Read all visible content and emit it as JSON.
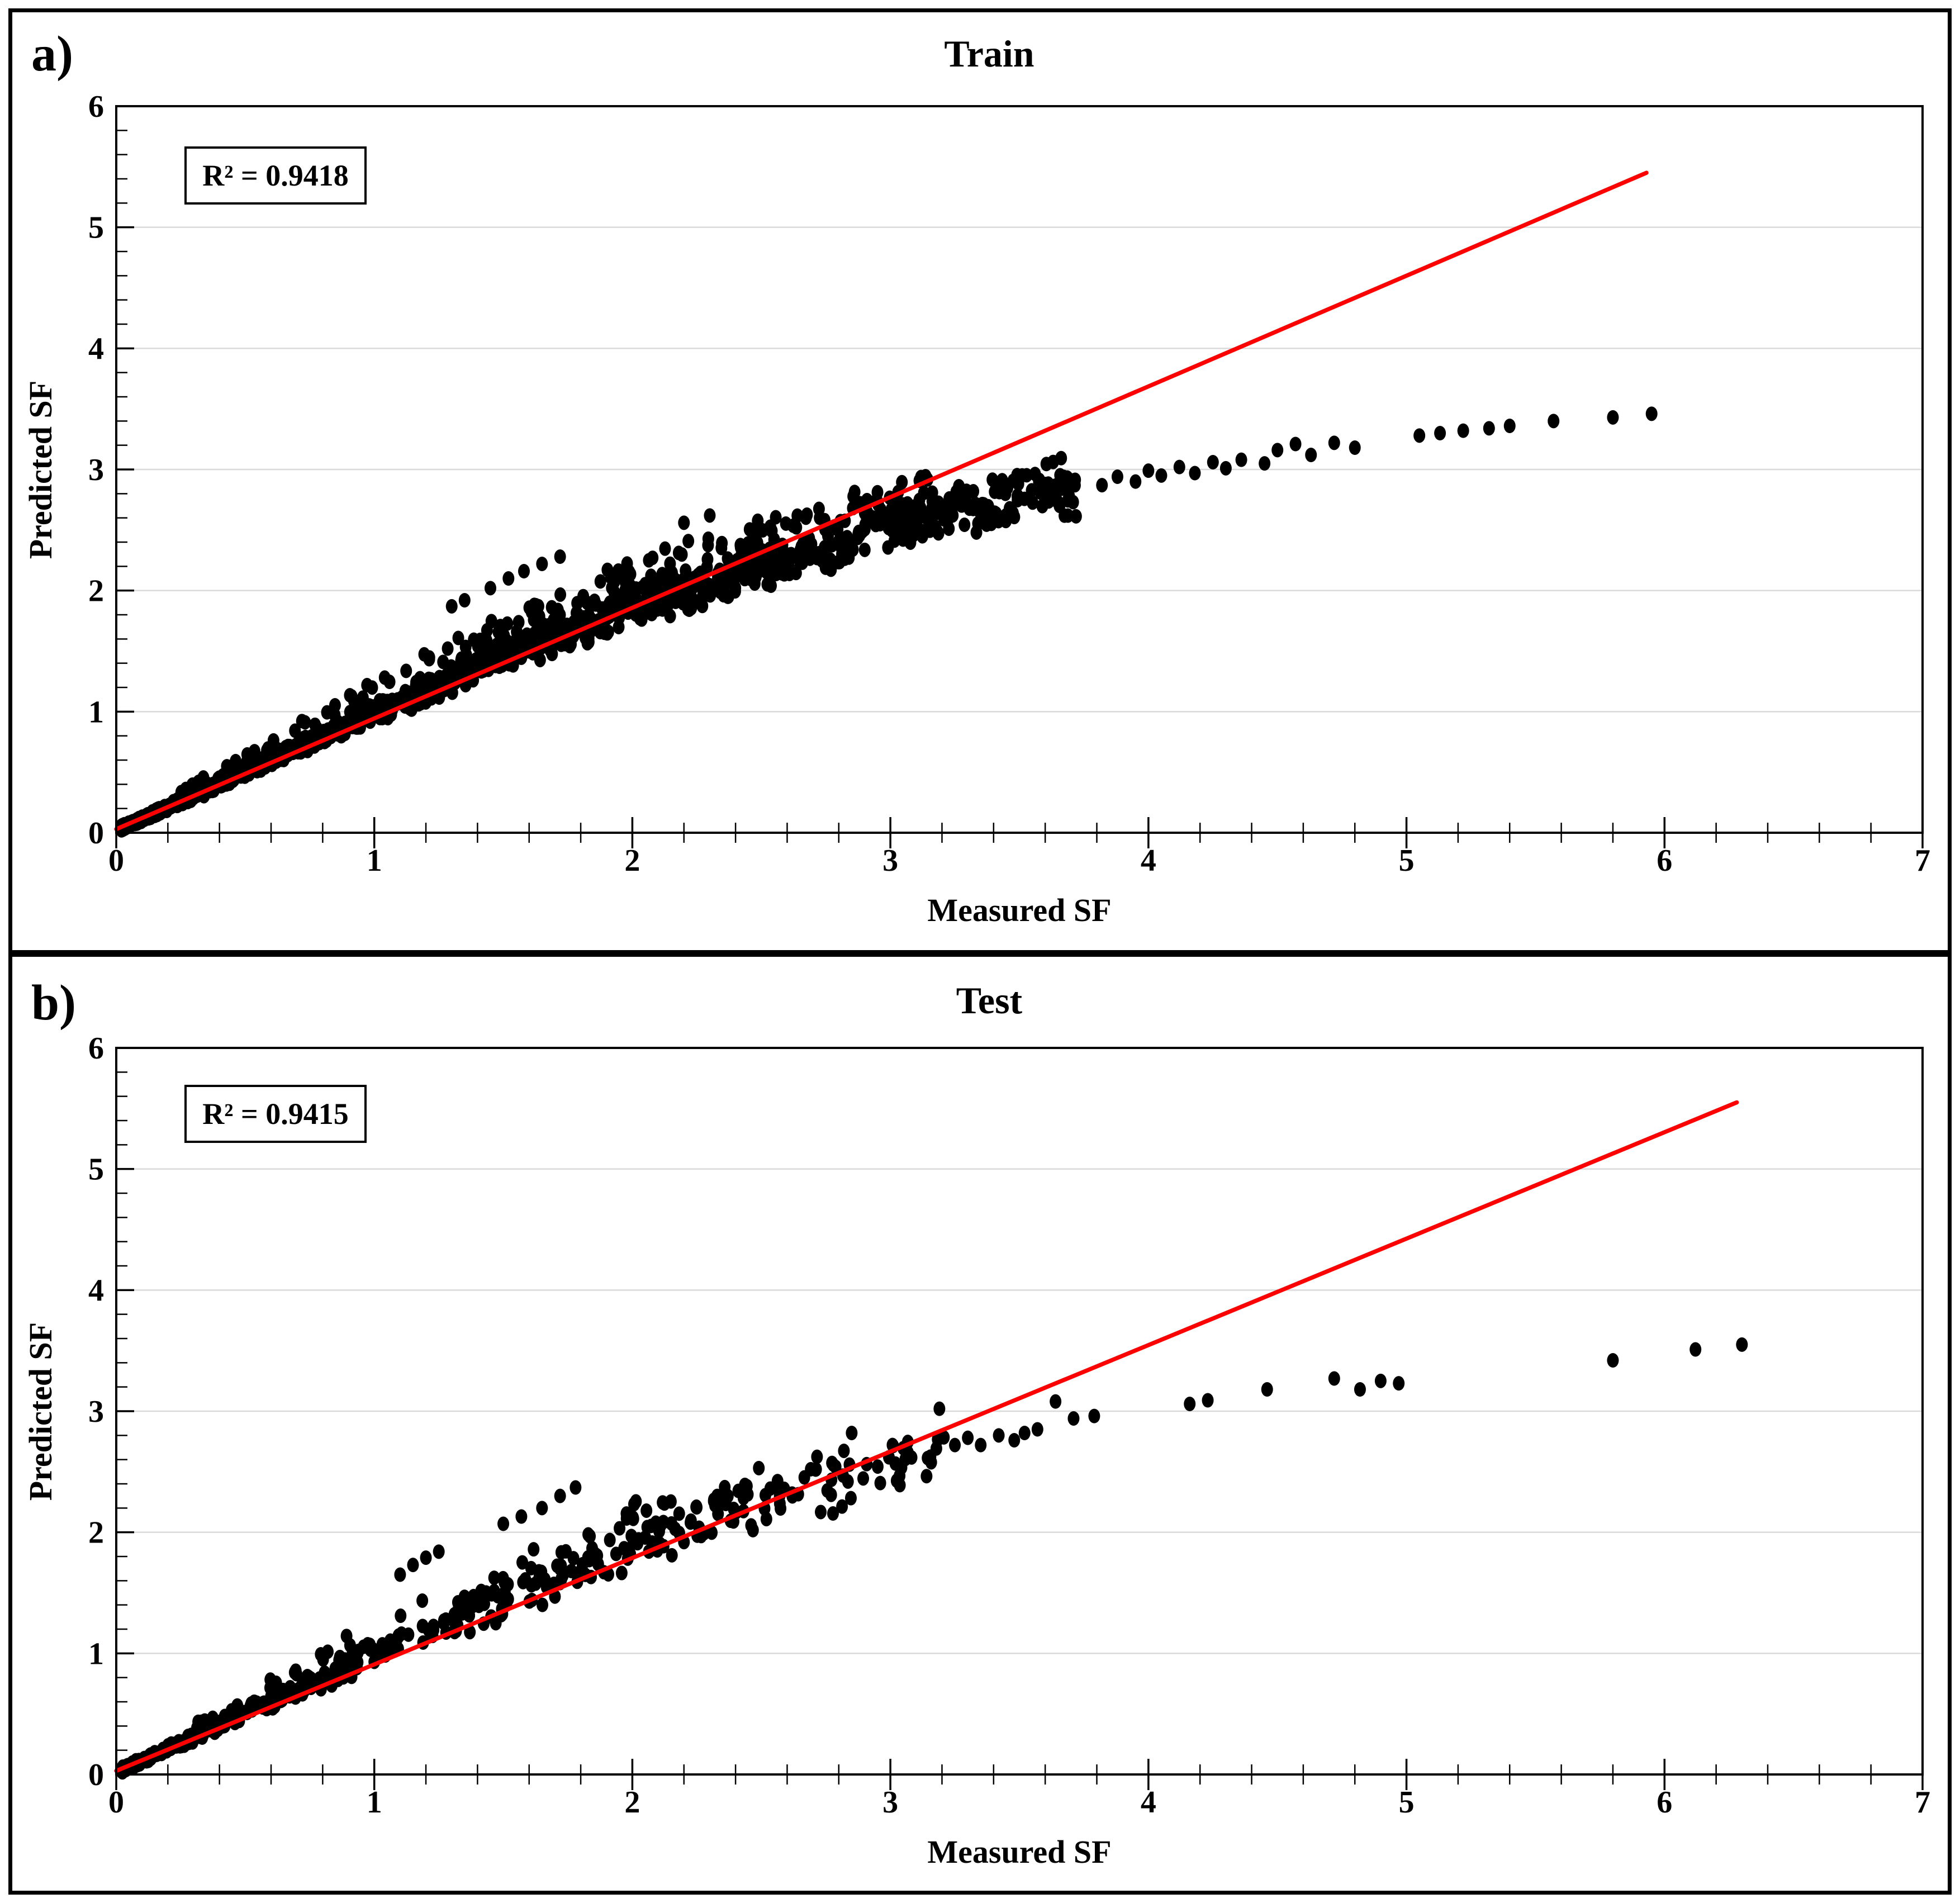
{
  "figure": {
    "background": "#FFFFFF",
    "border_color": "#000000",
    "text_color": "#000000"
  },
  "chart_data": [
    {
      "id": "train",
      "type": "scatter",
      "panel_letter": "a)",
      "title": "Train",
      "annotation": "R² = 0.9418",
      "xlabel": "Measured SF",
      "ylabel": "Predicted SF",
      "xlim": [
        0,
        7
      ],
      "ylim": [
        0,
        6
      ],
      "x_major_step": 1,
      "x_minor_step": 0.2,
      "y_major_step": 1,
      "y_minor_step": 0.2,
      "x_tick_labels": [
        "0",
        "1",
        "2",
        "3",
        "4",
        "5",
        "6",
        "7"
      ],
      "y_tick_labels": [
        "0",
        "1",
        "2",
        "3",
        "4",
        "5",
        "6"
      ],
      "grid": {
        "show": true,
        "color": "#D9D9D9",
        "y_lines": [
          1,
          2,
          3,
          4,
          5
        ]
      },
      "marker": {
        "color": "#000000",
        "rx": 10.5,
        "ry": 13
      },
      "fit_line": {
        "color": "#FF0000",
        "width": 7.5,
        "from": [
          0,
          0.03
        ],
        "to": [
          5.93,
          5.45
        ]
      },
      "trend_curve": [
        [
          0,
          0.02
        ],
        [
          0.5,
          0.5
        ],
        [
          1,
          0.99
        ],
        [
          1.5,
          1.44
        ],
        [
          2,
          1.86
        ],
        [
          2.5,
          2.22
        ],
        [
          3,
          2.54
        ],
        [
          3.5,
          2.78
        ],
        [
          4,
          2.95
        ],
        [
          4.5,
          3.1
        ],
        [
          5,
          3.26
        ],
        [
          5.5,
          3.38
        ],
        [
          6,
          3.47
        ]
      ],
      "cloud": {
        "seed": 20418,
        "n_main": 1500,
        "x_min": 0.02,
        "x_scale": 3.7,
        "x_pow": 2.2,
        "rel_noise": 0.1,
        "abs_noise": 0.022,
        "arm": {
          "n": 280,
          "x_min": 0.25,
          "x_span": 2.9,
          "x_pow": 1.5,
          "v_pow": 1.7,
          "base": 1.05,
          "mag": 0.3,
          "falloff": 4.3
        }
      },
      "outlier_points": [
        [
          1.45,
          2.02
        ],
        [
          1.52,
          2.1
        ],
        [
          1.58,
          2.16
        ],
        [
          1.65,
          2.22
        ],
        [
          1.72,
          2.28
        ],
        [
          2.2,
          2.56
        ],
        [
          2.3,
          2.62
        ],
        [
          1.3,
          1.87
        ],
        [
          1.35,
          1.92
        ]
      ],
      "tail_points": [
        [
          3.82,
          2.87
        ],
        [
          3.88,
          2.94
        ],
        [
          3.95,
          2.9
        ],
        [
          4.0,
          2.99
        ],
        [
          4.05,
          2.95
        ],
        [
          4.12,
          3.02
        ],
        [
          4.18,
          2.97
        ],
        [
          4.25,
          3.06
        ],
        [
          4.3,
          3.01
        ],
        [
          4.36,
          3.08
        ],
        [
          4.45,
          3.05
        ],
        [
          4.5,
          3.16
        ],
        [
          4.57,
          3.21
        ],
        [
          4.63,
          3.12
        ],
        [
          4.72,
          3.22
        ],
        [
          4.8,
          3.18
        ],
        [
          5.05,
          3.28
        ],
        [
          5.13,
          3.3
        ],
        [
          5.22,
          3.32
        ],
        [
          5.32,
          3.34
        ],
        [
          5.4,
          3.36
        ],
        [
          5.57,
          3.4
        ],
        [
          5.8,
          3.43
        ],
        [
          5.95,
          3.46
        ]
      ]
    },
    {
      "id": "test",
      "type": "scatter",
      "panel_letter": "b)",
      "title": "Test",
      "annotation": "R² = 0.9415",
      "xlabel": "Measured SF",
      "ylabel": "Predicted SF",
      "xlim": [
        0,
        7
      ],
      "ylim": [
        0,
        6
      ],
      "x_major_step": 1,
      "x_minor_step": 0.2,
      "y_major_step": 1,
      "y_minor_step": 0.2,
      "x_tick_labels": [
        "0",
        "1",
        "2",
        "3",
        "4",
        "5",
        "6",
        "7"
      ],
      "y_tick_labels": [
        "0",
        "1",
        "2",
        "3",
        "4",
        "5",
        "6"
      ],
      "grid": {
        "show": true,
        "color": "#D9D9D9",
        "y_lines": [
          1,
          2,
          3,
          4,
          5
        ]
      },
      "marker": {
        "color": "#000000",
        "rx": 10.5,
        "ry": 13
      },
      "fit_line": {
        "color": "#FF0000",
        "width": 7.5,
        "from": [
          0,
          0.03
        ],
        "to": [
          6.28,
          5.55
        ]
      },
      "trend_curve": [
        [
          0,
          0.02
        ],
        [
          0.5,
          0.5
        ],
        [
          1,
          0.99
        ],
        [
          1.5,
          1.44
        ],
        [
          2,
          1.86
        ],
        [
          2.5,
          2.22
        ],
        [
          3,
          2.54
        ],
        [
          3.5,
          2.78
        ],
        [
          4,
          2.95
        ],
        [
          4.5,
          3.1
        ],
        [
          5,
          3.26
        ],
        [
          5.5,
          3.38
        ],
        [
          6,
          3.47
        ]
      ],
      "cloud": {
        "seed": 77415,
        "n_main": 430,
        "x_min": 0.02,
        "x_scale": 3.2,
        "x_pow": 1.9,
        "rel_noise": 0.12,
        "abs_noise": 0.03,
        "arm": {
          "n": 105,
          "x_min": 0.3,
          "x_span": 2.45,
          "x_pow": 1.4,
          "v_pow": 1.6,
          "base": 1.05,
          "mag": 0.3,
          "falloff": 4.2
        }
      },
      "outlier_points": [
        [
          1.5,
          2.07
        ],
        [
          1.57,
          2.13
        ],
        [
          1.65,
          2.2
        ],
        [
          1.72,
          2.3
        ],
        [
          1.78,
          2.37
        ],
        [
          1.1,
          1.65
        ],
        [
          1.15,
          1.73
        ],
        [
          1.2,
          1.79
        ],
        [
          1.25,
          1.84
        ],
        [
          2.85,
          2.82
        ],
        [
          3.19,
          3.02
        ]
      ],
      "tail_points": [
        [
          3.25,
          2.72
        ],
        [
          3.3,
          2.78
        ],
        [
          3.35,
          2.72
        ],
        [
          3.42,
          2.8
        ],
        [
          3.48,
          2.76
        ],
        [
          3.52,
          2.82
        ],
        [
          3.57,
          2.85
        ],
        [
          3.64,
          3.08
        ],
        [
          3.71,
          2.94
        ],
        [
          3.79,
          2.96
        ],
        [
          4.16,
          3.06
        ],
        [
          4.23,
          3.09
        ],
        [
          4.46,
          3.18
        ],
        [
          4.72,
          3.27
        ],
        [
          4.82,
          3.18
        ],
        [
          4.9,
          3.25
        ],
        [
          4.97,
          3.23
        ],
        [
          5.8,
          3.42
        ],
        [
          6.12,
          3.51
        ],
        [
          6.3,
          3.55
        ]
      ]
    }
  ]
}
